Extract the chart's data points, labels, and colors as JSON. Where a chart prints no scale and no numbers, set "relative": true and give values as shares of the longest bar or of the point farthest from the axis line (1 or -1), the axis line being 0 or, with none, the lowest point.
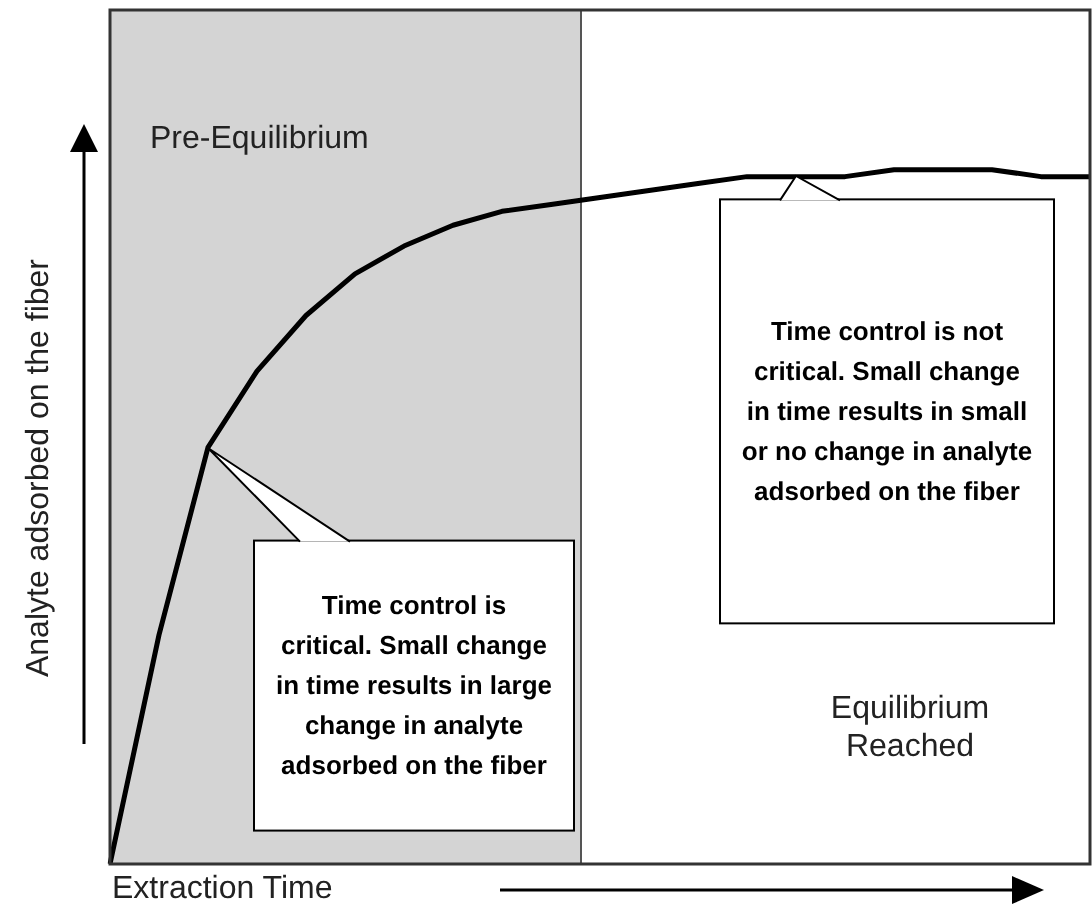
{
  "chart_data": {
    "type": "line",
    "relative": true,
    "xlabel": "Extraction Time",
    "ylabel": "Analyte adsorbed on the fiber",
    "categories": [
      null,
      null,
      null,
      null,
      null,
      null,
      null,
      null,
      null,
      null,
      null,
      null,
      null,
      null,
      null,
      null,
      null,
      null,
      null,
      null,
      null
    ],
    "series": [
      {
        "color": "#000000",
        "values": [
          0,
          0.33,
          0.6,
          0.71,
          0.79,
          0.85,
          0.89,
          0.92,
          0.94,
          0.95,
          0.96,
          0.97,
          0.98,
          0.99,
          0.99,
          0.99,
          1,
          1,
          1,
          0.99,
          0.99
        ]
      }
    ],
    "marker": "none",
    "line_style": "solid",
    "annotations": [
      "Pre-Equilibrium",
      "Equilibrium Reached",
      "Time control is critical. Small change in time results in large change in analyte adsorbed on the fiber",
      "Time control is not critical. Small change in time results in small or no change in analyte adsorbed on the fiber"
    ]
  }
}
